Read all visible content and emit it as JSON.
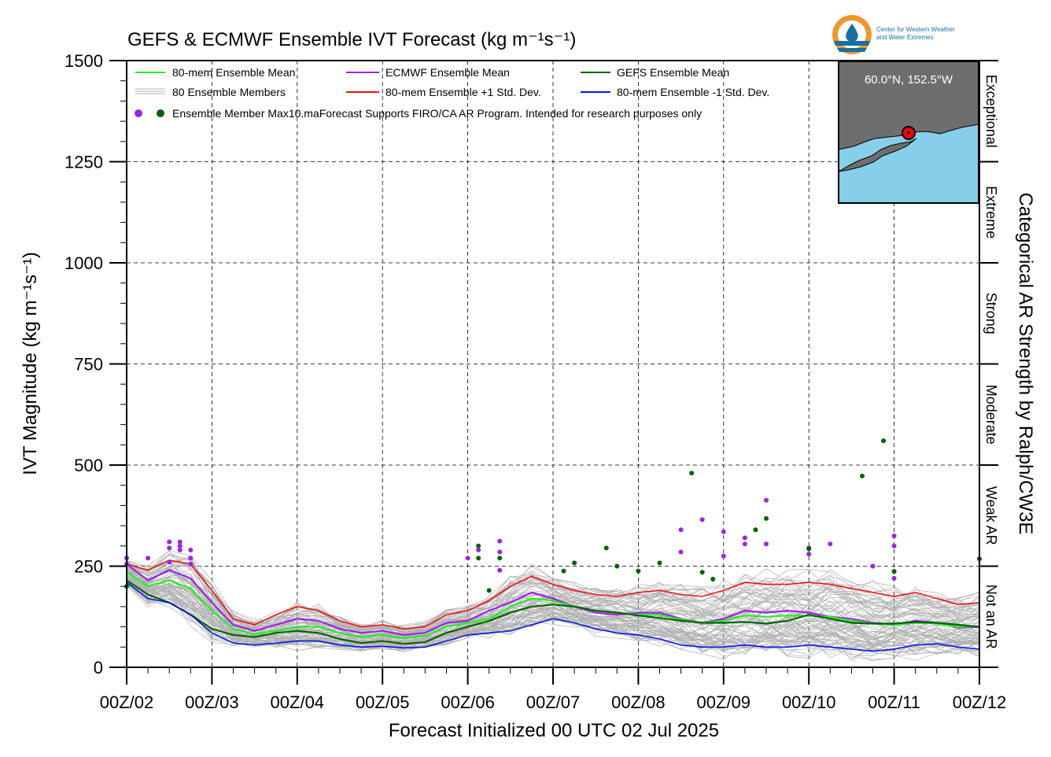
{
  "chart_data": {
    "type": "line",
    "title": "GEFS & ECMWF Ensemble IVT Forecast (kg m⁻¹s⁻¹)",
    "xlabel": "Forecast Initialized 00 UTC 02 Jul 2025",
    "ylabel": "IVT Magnitude (kg m⁻¹s⁻¹)",
    "right_label": "Categorical AR Strength by Ralph/CW3E",
    "ylim": [
      0,
      1500
    ],
    "xlim": [
      0,
      240
    ],
    "yticks": [
      0,
      250,
      500,
      750,
      1000,
      1250,
      1500
    ],
    "ytick_labels": [
      "0",
      "250",
      "500",
      "750",
      "1000",
      "1250",
      "1500"
    ],
    "xticks": [
      0,
      24,
      48,
      72,
      96,
      120,
      144,
      168,
      192,
      216,
      240
    ],
    "xtick_labels": [
      "00Z/02",
      "00Z/03",
      "00Z/04",
      "00Z/05",
      "00Z/06",
      "00Z/07",
      "00Z/08",
      "00Z/09",
      "00Z/10",
      "00Z/11",
      "00Z/12"
    ],
    "categories_ar": [
      {
        "label": "Not an AR",
        "from": 0,
        "to": 250
      },
      {
        "label": "Weak AR",
        "from": 250,
        "to": 500
      },
      {
        "label": "Moderate",
        "from": 500,
        "to": 750
      },
      {
        "label": "Strong",
        "from": 750,
        "to": 1000
      },
      {
        "label": "Extreme",
        "from": 1000,
        "to": 1250
      },
      {
        "label": "Exceptional",
        "from": 1250,
        "to": 1500
      }
    ],
    "grid": true,
    "legend_position": "top-left",
    "legend": [
      {
        "label": "80-mem Ensemble Mean",
        "color": "#22ee22",
        "kind": "line"
      },
      {
        "label": "ECMWF Ensemble Mean",
        "color": "#a020f0",
        "kind": "line"
      },
      {
        "label": "GEFS Ensemble Mean",
        "color": "#006400",
        "kind": "line"
      },
      {
        "label": "80 Ensemble Members",
        "color": "#b0b0b0",
        "kind": "multi"
      },
      {
        "label": "80-mem Ensemble +1 Std. Dev.",
        "color": "#ee1111",
        "kind": "line"
      },
      {
        "label": "80-mem Ensemble -1 Std. Dev.",
        "color": "#0a14e6",
        "kind": "line"
      },
      {
        "label": "Ensemble Member Max",
        "color": "#a020f0",
        "kind": "dots"
      }
    ],
    "legend_note": "10.maForecast Supports FIRO/CA AR Program. Intended for research purposes only",
    "series": [
      {
        "name": "80-mem Ensemble +1 Std. Dev.",
        "color": "#ee1111",
        "x": [
          0,
          6,
          12,
          18,
          24,
          30,
          36,
          42,
          48,
          54,
          60,
          66,
          72,
          78,
          84,
          90,
          96,
          102,
          108,
          114,
          120,
          126,
          132,
          138,
          144,
          150,
          156,
          162,
          168,
          174,
          180,
          186,
          192,
          198,
          204,
          210,
          216,
          222,
          228,
          234,
          240
        ],
        "values": [
          255,
          240,
          265,
          255,
          190,
          120,
          105,
          130,
          150,
          140,
          115,
          100,
          105,
          95,
          100,
          130,
          140,
          165,
          200,
          225,
          205,
          190,
          180,
          175,
          185,
          190,
          180,
          175,
          190,
          210,
          205,
          205,
          210,
          205,
          195,
          185,
          175,
          185,
          170,
          155,
          160
        ]
      },
      {
        "name": "ECMWF Ensemble Mean",
        "color": "#a020f0",
        "x": [
          0,
          6,
          12,
          18,
          24,
          30,
          36,
          42,
          48,
          54,
          60,
          66,
          72,
          78,
          84,
          90,
          96,
          102,
          108,
          114,
          120,
          126,
          132,
          138,
          144,
          150,
          156,
          162,
          168,
          174,
          180,
          186,
          192,
          198,
          204,
          210,
          216,
          222,
          228,
          234,
          240
        ],
        "values": [
          255,
          215,
          240,
          220,
          160,
          105,
          90,
          105,
          120,
          115,
          95,
          85,
          90,
          80,
          85,
          110,
          115,
          140,
          160,
          185,
          170,
          150,
          135,
          130,
          135,
          135,
          120,
          110,
          120,
          140,
          135,
          140,
          135,
          125,
          120,
          110,
          105,
          115,
          110,
          98,
          100
        ]
      },
      {
        "name": "80-mem Ensemble Mean",
        "color": "#22ee22",
        "x": [
          0,
          6,
          12,
          18,
          24,
          30,
          36,
          42,
          48,
          54,
          60,
          66,
          72,
          78,
          84,
          90,
          96,
          102,
          108,
          114,
          120,
          126,
          132,
          138,
          144,
          150,
          156,
          162,
          168,
          174,
          180,
          186,
          192,
          198,
          204,
          210,
          216,
          222,
          228,
          234,
          240
        ],
        "values": [
          235,
          200,
          215,
          195,
          140,
          95,
          82,
          90,
          100,
          100,
          85,
          75,
          80,
          72,
          78,
          100,
          110,
          120,
          150,
          170,
          165,
          150,
          140,
          135,
          130,
          130,
          118,
          110,
          115,
          128,
          125,
          128,
          127,
          125,
          115,
          108,
          105,
          110,
          108,
          100,
          102
        ]
      },
      {
        "name": "GEFS Ensemble Mean",
        "color": "#006400",
        "x": [
          0,
          6,
          12,
          18,
          24,
          30,
          36,
          42,
          48,
          54,
          60,
          66,
          72,
          78,
          84,
          90,
          96,
          102,
          108,
          114,
          120,
          126,
          132,
          138,
          144,
          150,
          156,
          162,
          168,
          174,
          180,
          186,
          192,
          198,
          204,
          210,
          216,
          222,
          228,
          234,
          240
        ],
        "values": [
          215,
          180,
          160,
          130,
          95,
          80,
          75,
          85,
          90,
          85,
          70,
          60,
          65,
          58,
          62,
          85,
          100,
          115,
          135,
          150,
          155,
          150,
          140,
          135,
          128,
          122,
          115,
          110,
          110,
          112,
          108,
          115,
          130,
          120,
          110,
          108,
          108,
          112,
          110,
          105,
          100
        ]
      },
      {
        "name": "80-mem Ensemble -1 Std. Dev.",
        "color": "#0a14e6",
        "x": [
          0,
          6,
          12,
          18,
          24,
          30,
          36,
          42,
          48,
          54,
          60,
          66,
          72,
          78,
          84,
          90,
          96,
          102,
          108,
          114,
          120,
          126,
          132,
          138,
          144,
          150,
          156,
          162,
          168,
          174,
          180,
          186,
          192,
          198,
          204,
          210,
          216,
          222,
          228,
          234,
          240
        ],
        "values": [
          210,
          170,
          160,
          130,
          85,
          60,
          55,
          60,
          65,
          65,
          55,
          50,
          52,
          48,
          50,
          65,
          80,
          85,
          90,
          105,
          120,
          110,
          95,
          85,
          80,
          70,
          55,
          50,
          50,
          55,
          50,
          50,
          55,
          50,
          45,
          40,
          45,
          55,
          58,
          50,
          45
        ]
      }
    ],
    "member_max_ecmwf": [
      {
        "x": 0,
        "y": 270
      },
      {
        "x": 0,
        "y": 255
      },
      {
        "x": 6,
        "y": 270
      },
      {
        "x": 12,
        "y": 310
      },
      {
        "x": 12,
        "y": 295
      },
      {
        "x": 12,
        "y": 260
      },
      {
        "x": 15,
        "y": 310
      },
      {
        "x": 15,
        "y": 300
      },
      {
        "x": 15,
        "y": 290
      },
      {
        "x": 18,
        "y": 290
      },
      {
        "x": 18,
        "y": 270
      },
      {
        "x": 18,
        "y": 255
      },
      {
        "x": 96,
        "y": 270
      },
      {
        "x": 99,
        "y": 290
      },
      {
        "x": 105,
        "y": 312
      },
      {
        "x": 105,
        "y": 285
      },
      {
        "x": 105,
        "y": 240
      },
      {
        "x": 156,
        "y": 340
      },
      {
        "x": 156,
        "y": 285
      },
      {
        "x": 162,
        "y": 365
      },
      {
        "x": 168,
        "y": 335
      },
      {
        "x": 168,
        "y": 275
      },
      {
        "x": 174,
        "y": 320
      },
      {
        "x": 174,
        "y": 305
      },
      {
        "x": 180,
        "y": 413
      },
      {
        "x": 180,
        "y": 305
      },
      {
        "x": 192,
        "y": 295
      },
      {
        "x": 192,
        "y": 280
      },
      {
        "x": 198,
        "y": 305
      },
      {
        "x": 210,
        "y": 250
      },
      {
        "x": 216,
        "y": 325
      },
      {
        "x": 216,
        "y": 300
      },
      {
        "x": 216,
        "y": 220
      }
    ],
    "member_max_gefs": [
      {
        "x": 0,
        "y": 200
      },
      {
        "x": 99,
        "y": 300
      },
      {
        "x": 99,
        "y": 270
      },
      {
        "x": 102,
        "y": 190
      },
      {
        "x": 105,
        "y": 270
      },
      {
        "x": 123,
        "y": 238
      },
      {
        "x": 126,
        "y": 258
      },
      {
        "x": 135,
        "y": 295
      },
      {
        "x": 138,
        "y": 250
      },
      {
        "x": 144,
        "y": 238
      },
      {
        "x": 150,
        "y": 258
      },
      {
        "x": 159,
        "y": 480
      },
      {
        "x": 162,
        "y": 235
      },
      {
        "x": 165,
        "y": 218
      },
      {
        "x": 177,
        "y": 340
      },
      {
        "x": 180,
        "y": 368
      },
      {
        "x": 192,
        "y": 293
      },
      {
        "x": 207,
        "y": 473
      },
      {
        "x": 213,
        "y": 560
      },
      {
        "x": 216,
        "y": 237
      },
      {
        "x": 240,
        "y": 268
      }
    ]
  },
  "colors": {
    "members": "#b0b0b0",
    "inset_land": "#6e6e6e",
    "inset_ocean": "#87ceeb",
    "logo_orange": "#f0962a",
    "logo_blue": "#1a6fa0"
  },
  "inset": {
    "location_label": "60.0°N, 152.5°W"
  },
  "logo": {
    "line1": "Center for Western Weather",
    "line2": "and Water Extremes"
  }
}
